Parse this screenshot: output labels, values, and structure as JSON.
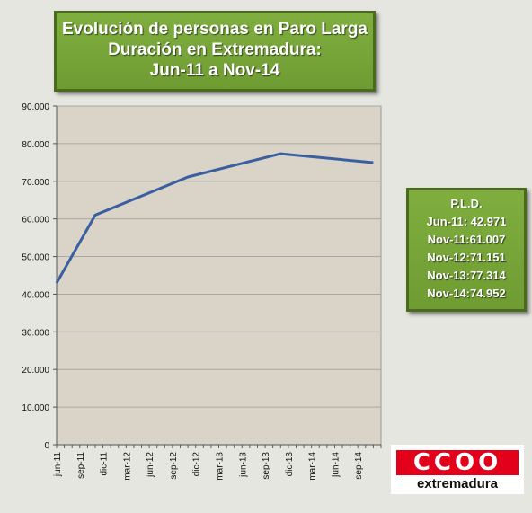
{
  "title": {
    "line1": "Evolución de personas  en Paro Larga",
    "line2": "Duración en Extremadura:",
    "line3": "Jun-11 a Nov-14"
  },
  "legend_box": {
    "heading": "P.L.D.",
    "lines": [
      "Jun-11: 42.971",
      "Nov-11:61.007",
      "Nov-12:71.151",
      "Nov-13:77.314",
      "Nov-14:74.952"
    ]
  },
  "logo": {
    "mark": "CCOO",
    "text": "extremadura"
  },
  "colors": {
    "line": "#3a5fa0",
    "plot_bg": "#d9d4c7",
    "box_green": "#76a538"
  },
  "chart_data": {
    "type": "line",
    "ylim": [
      0,
      90000
    ],
    "yticks": [
      0,
      10000,
      20000,
      30000,
      40000,
      50000,
      60000,
      70000,
      80000,
      90000
    ],
    "ytick_labels": [
      "0",
      "10.000",
      "20.000",
      "30.000",
      "40.000",
      "50.000",
      "60.000",
      "70.000",
      "80.000",
      "90.000"
    ],
    "xtick_labels": [
      "jun-11",
      "sep-11",
      "dic-11",
      "mar-12",
      "jun-12",
      "sep-12",
      "dic-12",
      "mar-13",
      "jun-13",
      "sep-13",
      "dic-13",
      "mar-14",
      "jun-14",
      "sep-14"
    ],
    "grid": true,
    "points": [
      {
        "x": "jun-11",
        "y": 42971
      },
      {
        "x": "nov-11",
        "y": 61007
      },
      {
        "x": "nov-12",
        "y": 71151
      },
      {
        "x": "nov-13",
        "y": 77314
      },
      {
        "x": "nov-14",
        "y": 74952
      }
    ]
  }
}
